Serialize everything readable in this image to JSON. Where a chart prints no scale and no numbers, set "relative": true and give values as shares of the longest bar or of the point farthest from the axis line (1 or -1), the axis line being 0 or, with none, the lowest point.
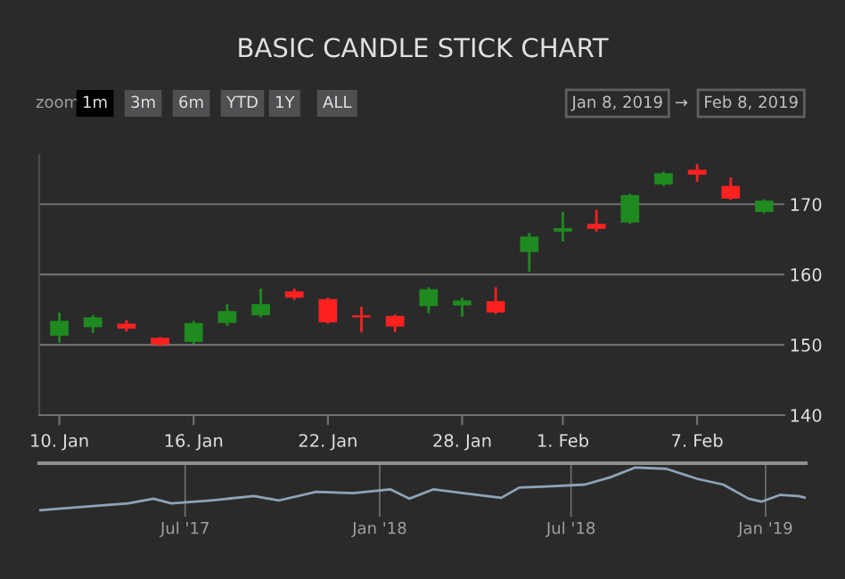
{
  "chart_data": [
    {
      "type": "candlestick",
      "title": "BASIC CANDLE STICK CHART",
      "annotations": [
        "zoom",
        "1m",
        "3m",
        "6m",
        "YTD",
        "1Y",
        "ALL",
        "Jan 8, 2019",
        "→",
        "Feb 8, 2019"
      ],
      "categories": [
        "10. Jan",
        null,
        null,
        null,
        "16. Jan",
        null,
        null,
        null,
        "22. Jan",
        null,
        null,
        null,
        "28. Jan",
        null,
        null,
        "1. Feb",
        null,
        null,
        null,
        "7. Feb",
        null,
        null
      ],
      "ohlc": [
        [
          151.3,
          154.6,
          150.3,
          153.4
        ],
        [
          152.5,
          154.2,
          151.7,
          153.9
        ],
        [
          153.0,
          153.5,
          151.9,
          152.3
        ],
        [
          151.0,
          151.1,
          149.8,
          150.0
        ],
        [
          150.4,
          153.4,
          150.1,
          153.1
        ],
        [
          153.1,
          155.8,
          152.7,
          154.8
        ],
        [
          154.2,
          158.0,
          153.9,
          155.8
        ],
        [
          157.6,
          158.0,
          156.4,
          156.7
        ],
        [
          156.5,
          156.7,
          153.0,
          153.2
        ],
        [
          154.2,
          155.4,
          151.8,
          153.9
        ],
        [
          154.1,
          154.3,
          151.8,
          152.6
        ],
        [
          155.5,
          158.2,
          154.5,
          157.9
        ],
        [
          155.6,
          156.7,
          154.0,
          156.3
        ],
        [
          156.2,
          158.2,
          154.4,
          154.6
        ],
        [
          163.2,
          165.9,
          160.4,
          165.4
        ],
        [
          166.1,
          168.9,
          164.7,
          166.6
        ],
        [
          167.2,
          169.2,
          166.1,
          166.5
        ],
        [
          167.4,
          171.5,
          167.2,
          171.3
        ],
        [
          172.8,
          174.6,
          172.6,
          174.4
        ],
        [
          174.9,
          175.7,
          173.2,
          174.2
        ],
        [
          172.6,
          173.8,
          170.6,
          170.8
        ],
        [
          168.9,
          170.7,
          168.7,
          170.5
        ]
      ],
      "colors": [
        "#1f8a1f",
        "#1f8a1f",
        "#ff2020",
        "#ff2020",
        "#1f8a1f",
        "#1f8a1f",
        "#1f8a1f",
        "#ff2020",
        "#ff2020",
        "#ff2020",
        "#ff2020",
        "#1f8a1f",
        "#1f8a1f",
        "#ff2020",
        "#1f8a1f",
        "#1f8a1f",
        "#ff2020",
        "#1f8a1f",
        "#1f8a1f",
        "#ff2020",
        "#ff2020",
        "#1f8a1f"
      ],
      "ylim": [
        140,
        177
      ],
      "yticks": [
        140,
        150,
        160,
        170
      ],
      "grid": "y"
    },
    {
      "type": "line",
      "relative": true,
      "color": "#8fa3b8",
      "grid": "x",
      "tick_labels": "x",
      "x": [
        "2017-02-13",
        "2017-03-22",
        "2017-05-08",
        "2017-06-01",
        "2017-06-18",
        "2017-07-25",
        "2017-09-04",
        "2017-09-28",
        "2017-11-02",
        "2017-12-07",
        "2018-01-11",
        "2018-01-29",
        "2018-02-21",
        "2018-03-21",
        "2018-04-26",
        "2018-05-13",
        "2018-06-13",
        "2018-07-14",
        "2018-08-07",
        "2018-08-31",
        "2018-09-29",
        "2018-10-29",
        "2018-11-22",
        "2018-12-16",
        "2018-12-28",
        "2019-01-15",
        "2019-02-01",
        "2019-02-08"
      ],
      "values": [
        0,
        0.07,
        0.16,
        0.27,
        0.16,
        0.23,
        0.33,
        0.23,
        0.43,
        0.4,
        0.49,
        0.27,
        0.49,
        0.4,
        0.29,
        0.53,
        0.56,
        0.6,
        0.77,
        1.0,
        0.97,
        0.73,
        0.6,
        0.27,
        0.2,
        0.36,
        0.33,
        0.29
      ],
      "xlim": [
        "2017-02-13",
        "2019-02-08"
      ],
      "xticks": [
        {
          "value": "2017-07-01",
          "label": "Jul '17"
        },
        {
          "value": "2018-01-01",
          "label": "Jan '18"
        },
        {
          "value": "2018-07-01",
          "label": "Jul '18"
        },
        {
          "value": "2019-01-01",
          "label": "Jan '19"
        }
      ]
    }
  ]
}
